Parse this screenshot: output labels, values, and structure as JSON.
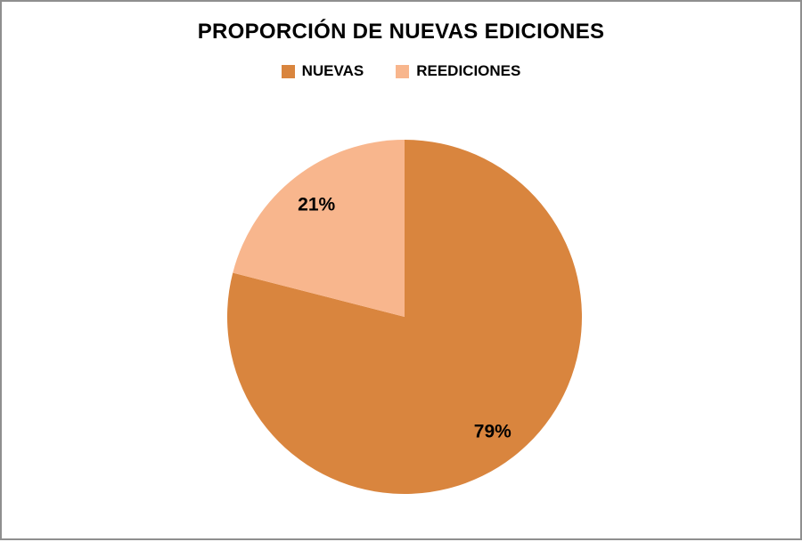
{
  "frame": {
    "background": "#ffffff",
    "border_color": "#8f8f8f"
  },
  "chart_data": {
    "type": "pie",
    "title": "PROPORCIÓN DE NUEVAS EDICIONES",
    "legend_position": "top",
    "start_angle_deg": 0,
    "direction": "clockwise",
    "slices": [
      {
        "label": "NUEVAS",
        "value": 79,
        "data_label": "79%",
        "color": "#D9853E"
      },
      {
        "label": "REEDICIONES",
        "value": 21,
        "data_label": "21%",
        "color": "#F8B68D"
      }
    ],
    "title_color": "#000000",
    "legend_text_color": "#000000",
    "data_label_color": "#000000"
  }
}
